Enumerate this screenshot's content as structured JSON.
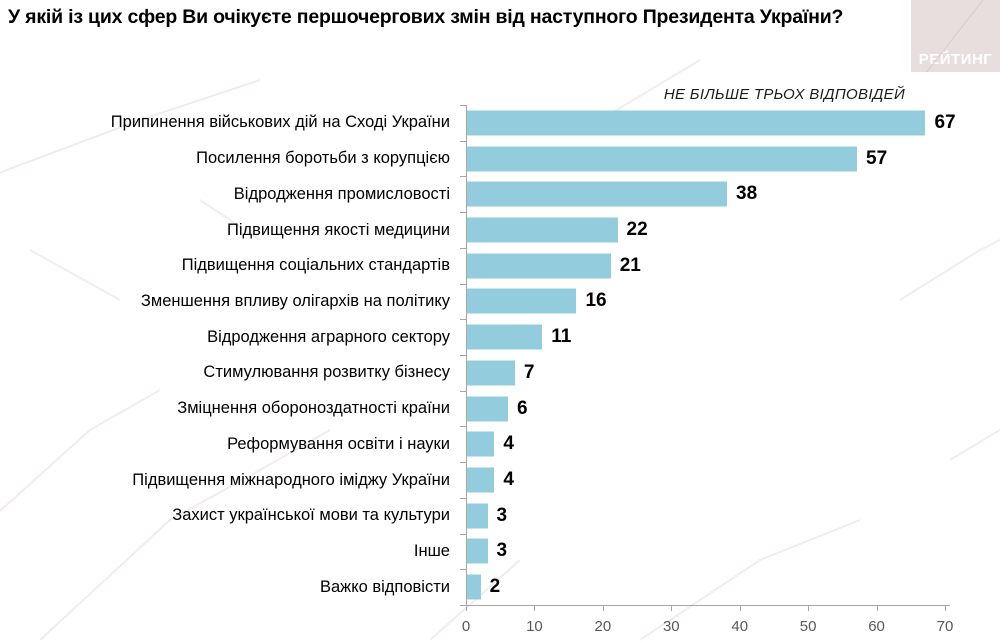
{
  "header": {
    "title": "У якій із цих сфер Ви очікуєте першочергових змін від наступного Президента України?",
    "logo_text": "РЕЙТИНГ"
  },
  "note": "НЕ БІЛЬШЕ ТРЬОХ ВІДПОВІДЕЙ",
  "colors": {
    "bar": "#93CDDD",
    "axis": "#A6A6A6",
    "tick_label": "#595959",
    "category_label": "#000000",
    "value_label": "#000000",
    "title": "#000000",
    "logo_bg": "#E8DEDE",
    "logo_text": "#FFFFFF"
  },
  "chart_data": {
    "type": "bar",
    "orientation": "horizontal",
    "title": "У якій із цих сфер Ви очікуєте першочергових змін від наступного Президента України?",
    "annotation": "НЕ БІЛЬШЕ ТРЬОХ ВІДПОВІДЕЙ",
    "categories": [
      "Припинення військових дій на Сході України",
      "Посилення боротьби з корупцією",
      "Відродження промисловості",
      "Підвищення якості медицини",
      "Підвищення соціальних стандартів",
      "Зменшення впливу олігархів на політику",
      "Відродження аграрного сектору",
      "Стимулювання розвитку бізнесу",
      "Зміцнення обороноздатності країни",
      "Реформування освіти і науки",
      "Підвищення міжнародного іміджу України",
      "Захист української мови та культури",
      "Інше",
      "Важко відповісти"
    ],
    "values": [
      67,
      57,
      38,
      22,
      21,
      16,
      11,
      7,
      6,
      4,
      4,
      3,
      3,
      2
    ],
    "xlim": [
      0,
      70
    ],
    "x_ticks": [
      0,
      10,
      20,
      30,
      40,
      50,
      60,
      70
    ],
    "xlabel": "",
    "ylabel": "",
    "grid": false,
    "legend_position": "none",
    "bar_color": "#93CDDD"
  }
}
